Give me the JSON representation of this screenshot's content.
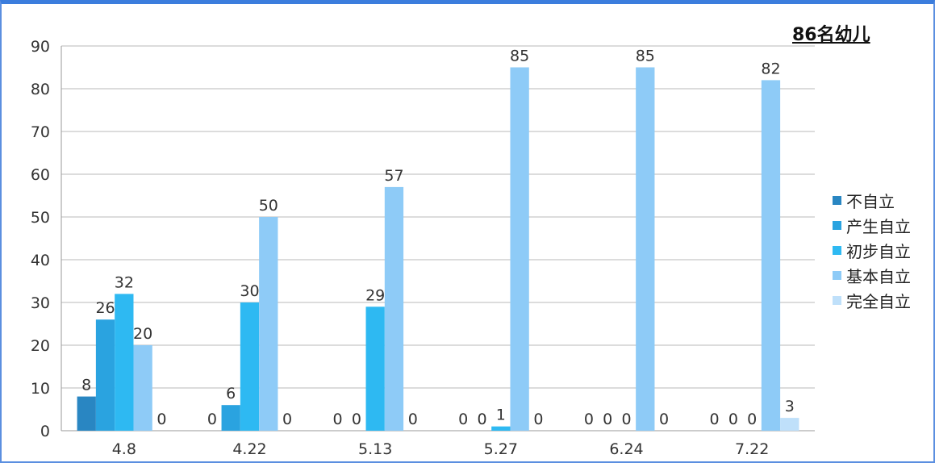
{
  "chart_data": {
    "type": "bar",
    "title": "86名幼儿",
    "categories": [
      "4.8",
      "4.22",
      "5.13",
      "5.27",
      "6.24",
      "7.22"
    ],
    "series": [
      {
        "name": "不自立",
        "color": "#2986c2",
        "values": [
          8,
          0,
          0,
          0,
          0,
          0
        ]
      },
      {
        "name": "产生自立",
        "color": "#2aa3e0",
        "values": [
          26,
          6,
          0,
          0,
          0,
          0
        ]
      },
      {
        "name": "初步自立",
        "color": "#2eb9f2",
        "values": [
          32,
          30,
          29,
          1,
          0,
          0
        ]
      },
      {
        "name": "基本自立",
        "color": "#8ecbf7",
        "values": [
          20,
          50,
          57,
          85,
          85,
          82
        ]
      },
      {
        "name": "完全自立",
        "color": "#bfe0fa",
        "values": [
          0,
          0,
          0,
          0,
          0,
          3
        ]
      }
    ],
    "ylim": [
      0,
      90
    ],
    "yticks": [
      0,
      10,
      20,
      30,
      40,
      50,
      60,
      70,
      80,
      90
    ],
    "grid": true,
    "legend": "right"
  }
}
